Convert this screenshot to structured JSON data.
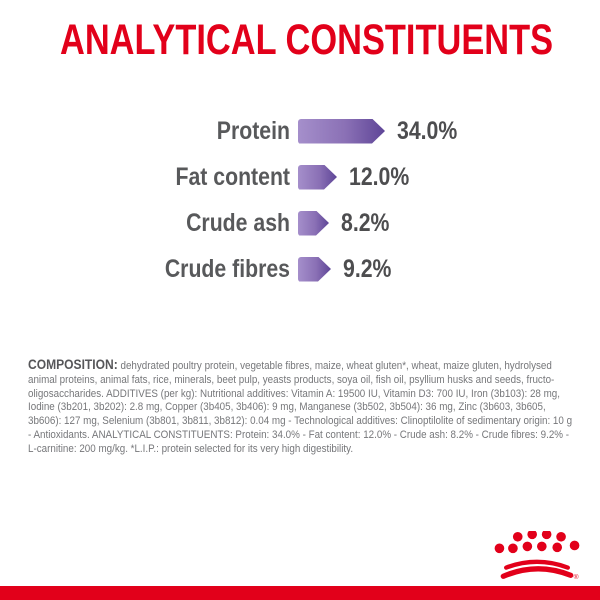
{
  "title": "ANALYTICAL CONSTITUENTS",
  "chart_data": {
    "type": "bar",
    "orientation": "horizontal",
    "title": "ANALYTICAL CONSTITUENTS",
    "categories": [
      "Protein",
      "Fat content",
      "Crude ash",
      "Crude fibres"
    ],
    "values": [
      34.0,
      12.0,
      8.2,
      9.2
    ],
    "value_labels": [
      "34.0%",
      "12.0%",
      "8.2%",
      "9.2%"
    ],
    "unit": "%",
    "legend": "none",
    "grid": "off",
    "bar_shape": "right-pointing-arrow",
    "colors": {
      "bar_gradient_start": "#a58fcb",
      "bar_gradient_end": "#5e4597",
      "label_text": "#58595b",
      "value_text": "#4d4d4f",
      "title_text": "#e2001a"
    }
  },
  "composition": {
    "lead": "COMPOSITION:",
    "body": " dehydrated poultry protein, vegetable fibres, maize, wheat gluten*, wheat, maize gluten, hydrolysed animal proteins, animal fats, rice, minerals, beet pulp, yeasts products, soya oil, fish oil, psyllium husks and seeds, fructo-oligosaccharides. ADDITIVES (per kg): Nutritional additives: Vitamin A: 19500 IU, Vitamin D3: 700 IU, Iron (3b103): 28 mg, Iodine (3b201, 3b202): 2.8 mg, Copper (3b405, 3b406): 9 mg, Manganese (3b502, 3b504): 36 mg, Zinc (3b603, 3b605, 3b606): 127 mg, Selenium (3b801, 3b811, 3b812): 0.04 mg - Technological additives: Clinoptilolite of sedimentary origin: 10 g - Antioxidants. ANALYTICAL CONSTITUENTS: Protein: 34.0% - Fat content: 12.0% - Crude ash: 8.2% - Crude fibres: 9.2% - L-carnitine: 200 mg/kg. *L.I.P.: protein selected for its very high digestibility."
  },
  "footer": {
    "logo": "royal-canin-crown",
    "trademark": "®",
    "bar_color": "#e2001a"
  },
  "colors": {
    "brand_red": "#e2001a",
    "background": "#ffffff"
  }
}
